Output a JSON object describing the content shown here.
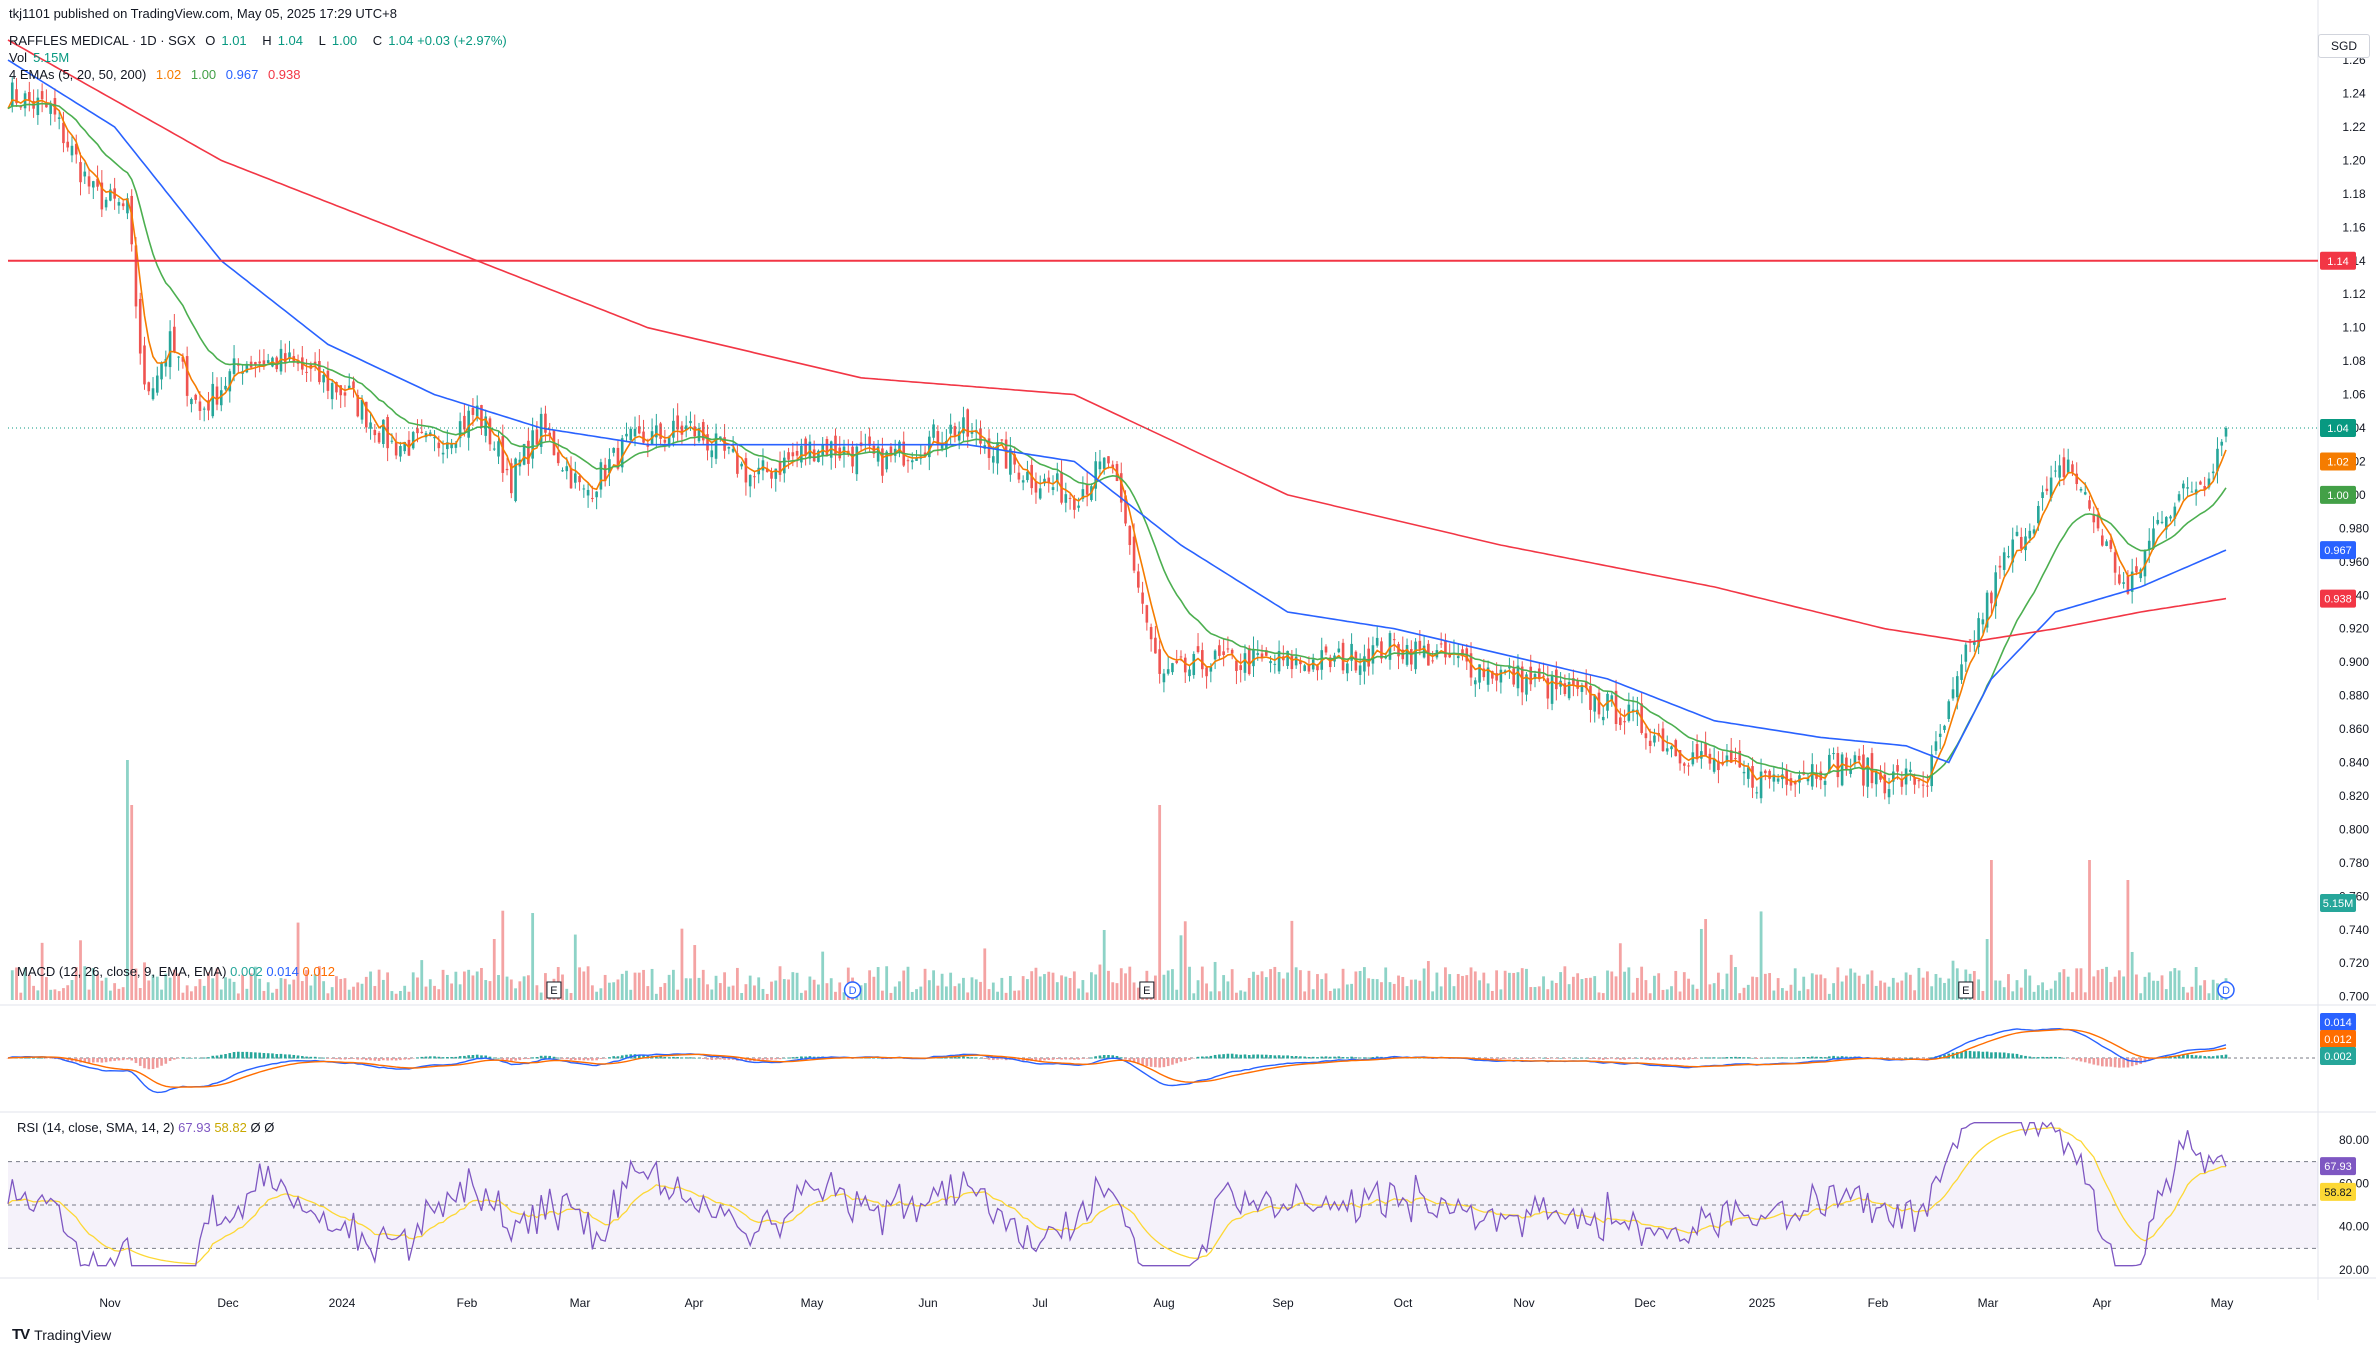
{
  "header": {
    "published": "tkj1101 published on TradingView.com, May 05, 2025 17:29 UTC+8",
    "symbol": "RAFFLES MEDICAL · 1D · SGX",
    "ohlc": [
      {
        "key": "O",
        "value": "1.01"
      },
      {
        "key": "H",
        "value": "1.04"
      },
      {
        "key": "L",
        "value": "1.00"
      },
      {
        "key": "C",
        "value": "1.04 +0.03 (+2.97%)"
      }
    ],
    "vol_label": "Vol",
    "vol_value": "5.15M",
    "ema_label": "4 EMAs (5, 20, 50, 200)",
    "ema_values": [
      "1.02",
      "1.00",
      "0.967",
      "0.938"
    ]
  },
  "currency": "SGD",
  "macd_label": "MACD (12, 26, close, 9, EMA, EMA)",
  "macd_values": [
    "0.002",
    "0.014",
    "0.012"
  ],
  "rsi_label": "RSI (14, close, SMA, 14, 2)",
  "rsi_values": [
    "67.93",
    "58.82",
    "Ø",
    "Ø"
  ],
  "branding": "TradingView",
  "colors": {
    "up": "#26a69a",
    "down": "#ef5350",
    "ema5": "#f57c00",
    "ema20": "#4caf50",
    "ema50": "#2962ff",
    "ema200": "#f23645",
    "resistance": "#f23645",
    "macd": "#2962ff",
    "signal": "#ff6d00",
    "rsi": "#7e57c2",
    "rsi_ma": "#fdd835"
  },
  "chart_data": {
    "type": "candlestick",
    "price_axis_ticks": [
      "1.26",
      "1.24",
      "1.22",
      "1.20",
      "1.18",
      "1.16",
      "1.14",
      "1.12",
      "1.10",
      "1.08",
      "1.06",
      "1.04",
      "1.02",
      "1.00",
      "0.980",
      "0.960",
      "0.940",
      "0.920",
      "0.900",
      "0.880",
      "0.860",
      "0.840",
      "0.820",
      "0.800",
      "0.780",
      "0.760",
      "0.740",
      "0.720",
      "0.700"
    ],
    "price_range": [
      0.698,
      1.272
    ],
    "time_labels": [
      "Nov",
      "Dec",
      "2024",
      "Feb",
      "Mar",
      "Apr",
      "May",
      "Jun",
      "Jul",
      "Aug",
      "Sep",
      "Oct",
      "Nov",
      "Dec",
      "2025",
      "Feb",
      "Mar",
      "Apr",
      "May"
    ],
    "resistance_level": 1.14,
    "last_price": 1.04,
    "price_badges": [
      {
        "label": "1.14",
        "value": 1.14,
        "color": "#f23645"
      },
      {
        "label": "1.04",
        "value": 1.04,
        "color": "#089981"
      },
      {
        "label": "1.02",
        "value": 1.02,
        "color": "#f57c00"
      },
      {
        "label": "1.00",
        "value": 1.0,
        "color": "#43a047"
      },
      {
        "label": "0.967",
        "value": 0.967,
        "color": "#2962ff"
      },
      {
        "label": "0.938",
        "value": 0.938,
        "color": "#f23645"
      },
      {
        "label": "5.15M",
        "value": 0.756,
        "color": "#26a69a"
      }
    ],
    "close_path": [
      [
        0,
        1.24
      ],
      [
        10,
        1.23
      ],
      [
        20,
        1.18
      ],
      [
        28,
        1.17
      ],
      [
        32,
        1.06
      ],
      [
        38,
        1.09
      ],
      [
        45,
        1.05
      ],
      [
        55,
        1.08
      ],
      [
        65,
        1.08
      ],
      [
        80,
        1.06
      ],
      [
        90,
        1.03
      ],
      [
        100,
        1.03
      ],
      [
        110,
        1.05
      ],
      [
        118,
        1.01
      ],
      [
        125,
        1.04
      ],
      [
        135,
        1.0
      ],
      [
        145,
        1.03
      ],
      [
        160,
        1.04
      ],
      [
        175,
        1.01
      ],
      [
        190,
        1.03
      ],
      [
        205,
        1.02
      ],
      [
        222,
        1.04
      ],
      [
        230,
        1.03
      ],
      [
        240,
        1.01
      ],
      [
        250,
        1.0
      ],
      [
        258,
        1.02
      ],
      [
        262,
        0.98
      ],
      [
        270,
        0.89
      ],
      [
        282,
        0.9
      ],
      [
        295,
        0.9
      ],
      [
        310,
        0.9
      ],
      [
        325,
        0.91
      ],
      [
        340,
        0.9
      ],
      [
        355,
        0.89
      ],
      [
        368,
        0.88
      ],
      [
        378,
        0.87
      ],
      [
        390,
        0.85
      ],
      [
        398,
        0.84
      ],
      [
        410,
        0.83
      ],
      [
        430,
        0.84
      ],
      [
        440,
        0.83
      ],
      [
        450,
        0.83
      ],
      [
        460,
        0.91
      ],
      [
        468,
        0.96
      ],
      [
        478,
        1.0
      ],
      [
        483,
        1.02
      ],
      [
        490,
        0.98
      ],
      [
        497,
        0.94
      ],
      [
        505,
        0.99
      ],
      [
        515,
        1.01
      ],
      [
        520,
        1.04
      ]
    ],
    "ema200_path": [
      [
        0,
        1.272
      ],
      [
        50,
        1.2
      ],
      [
        100,
        1.15
      ],
      [
        150,
        1.1
      ],
      [
        200,
        1.07
      ],
      [
        250,
        1.06
      ],
      [
        300,
        1.0
      ],
      [
        350,
        0.97
      ],
      [
        400,
        0.945
      ],
      [
        440,
        0.92
      ],
      [
        460,
        0.912
      ],
      [
        480,
        0.92
      ],
      [
        500,
        0.93
      ],
      [
        520,
        0.938
      ]
    ],
    "ema50_path": [
      [
        0,
        1.26
      ],
      [
        25,
        1.22
      ],
      [
        50,
        1.14
      ],
      [
        75,
        1.09
      ],
      [
        100,
        1.06
      ],
      [
        125,
        1.04
      ],
      [
        150,
        1.03
      ],
      [
        175,
        1.03
      ],
      [
        200,
        1.03
      ],
      [
        225,
        1.03
      ],
      [
        250,
        1.02
      ],
      [
        275,
        0.97
      ],
      [
        300,
        0.93
      ],
      [
        325,
        0.92
      ],
      [
        350,
        0.905
      ],
      [
        375,
        0.89
      ],
      [
        400,
        0.865
      ],
      [
        425,
        0.855
      ],
      [
        445,
        0.85
      ],
      [
        455,
        0.84
      ],
      [
        465,
        0.89
      ],
      [
        480,
        0.93
      ],
      [
        500,
        0.945
      ],
      [
        520,
        0.967
      ]
    ],
    "macd_values": {
      "macd": 0.002,
      "signal": 0.014,
      "histogram": 0.012
    },
    "rsi_values": {
      "rsi": 67.93,
      "rsi_ma": 58.82
    },
    "rsi_axis_ticks": [
      "80.00",
      "60.00",
      "40.00",
      "20.00"
    ]
  }
}
